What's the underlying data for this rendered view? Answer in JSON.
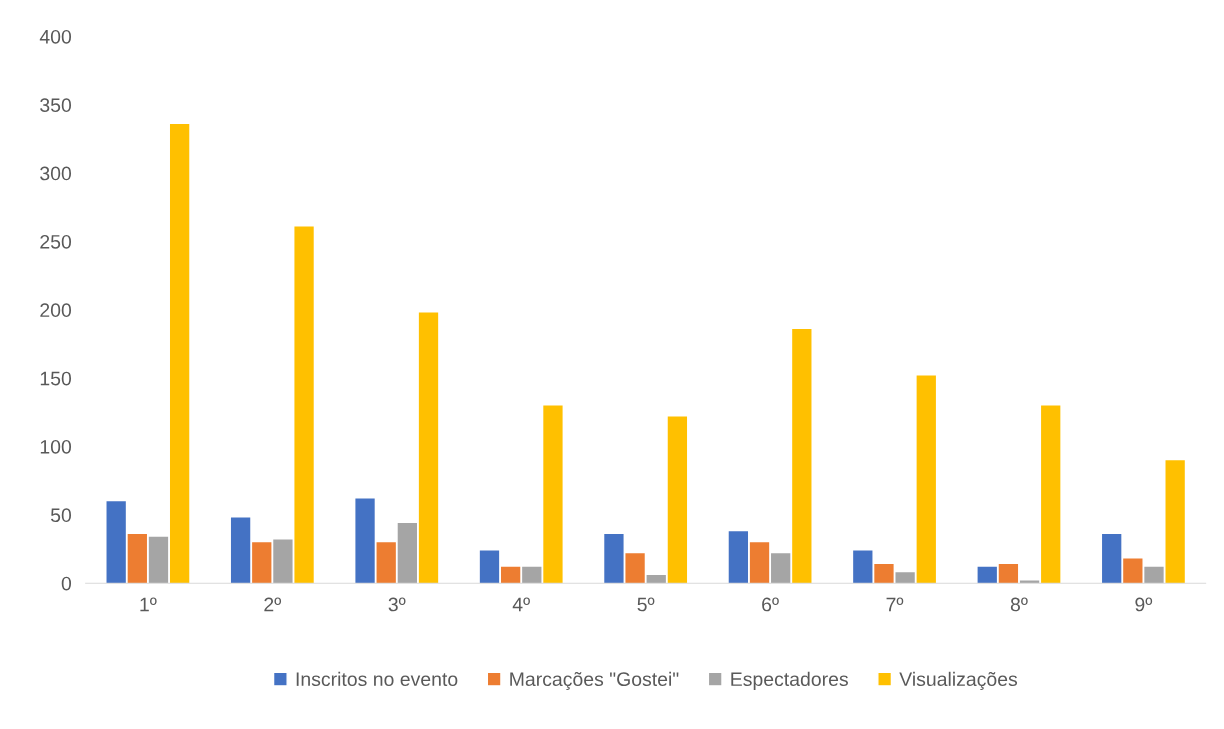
{
  "chart_data": {
    "type": "bar",
    "categories": [
      "1º",
      "2º",
      "3º",
      "4º",
      "5º",
      "6º",
      "7º",
      "8º",
      "9º"
    ],
    "series": [
      {
        "name": "Inscritos no evento",
        "color": "#4472c4",
        "values": [
          60,
          48,
          62,
          24,
          36,
          38,
          24,
          12,
          36
        ]
      },
      {
        "name": "Marcações \"Gostei\"",
        "color": "#ed7d31",
        "values": [
          36,
          30,
          30,
          12,
          22,
          30,
          14,
          14,
          18
        ]
      },
      {
        "name": "Espectadores",
        "color": "#a5a5a5",
        "values": [
          34,
          32,
          44,
          12,
          6,
          22,
          8,
          2,
          12
        ]
      },
      {
        "name": "Visualizações",
        "color": "#ffc000",
        "values": [
          336,
          261,
          198,
          130,
          122,
          186,
          152,
          130,
          90
        ]
      }
    ],
    "ylim": [
      0,
      400
    ],
    "yticks": [
      0,
      50,
      100,
      150,
      200,
      250,
      300,
      350,
      400
    ],
    "grid": false,
    "legend": "bottom"
  }
}
